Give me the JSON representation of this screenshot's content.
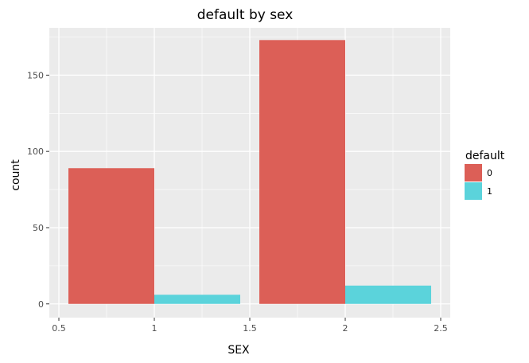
{
  "chart_data": {
    "type": "bar",
    "title": "default by sex",
    "xlabel": "SEX",
    "ylabel": "count",
    "xlim": [
      0.45,
      2.55
    ],
    "ylim": [
      -9,
      181
    ],
    "xticks": [
      "0.5",
      "1",
      "1.5",
      "2",
      "2.5"
    ],
    "yticks": [
      "0",
      "50",
      "100",
      "150"
    ],
    "legend": {
      "title": "default",
      "position": "right",
      "entries": [
        {
          "label": "0",
          "color": "#dc5f57"
        },
        {
          "label": "1",
          "color": "#5bd3db"
        }
      ]
    },
    "grid": true,
    "bars": [
      {
        "x_start": 0.55,
        "x_end": 1.0,
        "value": 89,
        "series": "0"
      },
      {
        "x_start": 1.0,
        "x_end": 1.45,
        "value": 6,
        "series": "1"
      },
      {
        "x_start": 1.55,
        "x_end": 2.0,
        "value": 173,
        "series": "0"
      },
      {
        "x_start": 2.0,
        "x_end": 2.45,
        "value": 12,
        "series": "1"
      }
    ],
    "colors": {
      "panel": "#ebebeb",
      "grid": "#ffffff",
      "series_0": "#dc5f57",
      "series_1": "#5bd3db"
    }
  }
}
